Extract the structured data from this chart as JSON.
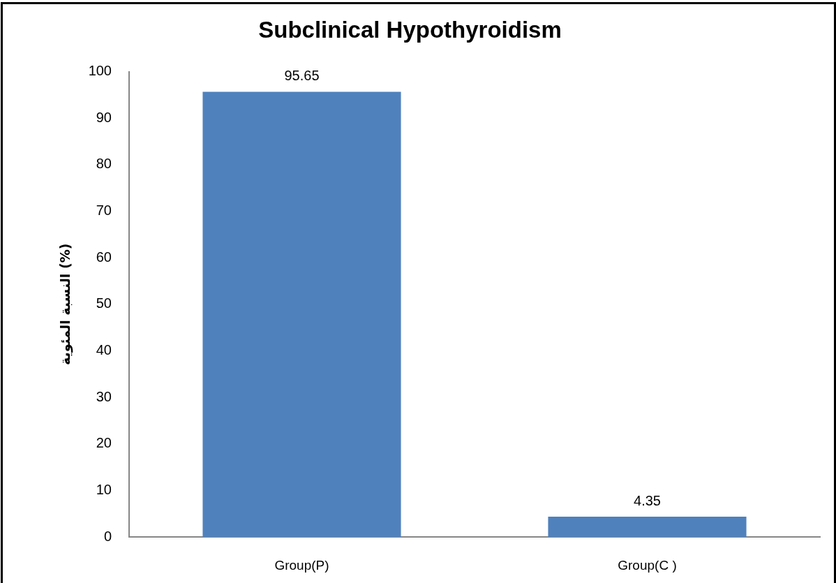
{
  "chart_data": {
    "type": "bar",
    "title": "Subclinical Hypothyroidism",
    "ylabel": "النسبة المئوية (%)",
    "categories": [
      "Group(P)",
      "Group(C )"
    ],
    "values": [
      95.65,
      4.35
    ],
    "color": "#4f81bd",
    "ylim": [
      0,
      100
    ],
    "yticks": [
      0,
      10,
      20,
      30,
      40,
      50,
      60,
      70,
      80,
      90,
      100
    ],
    "data_labels": true
  }
}
